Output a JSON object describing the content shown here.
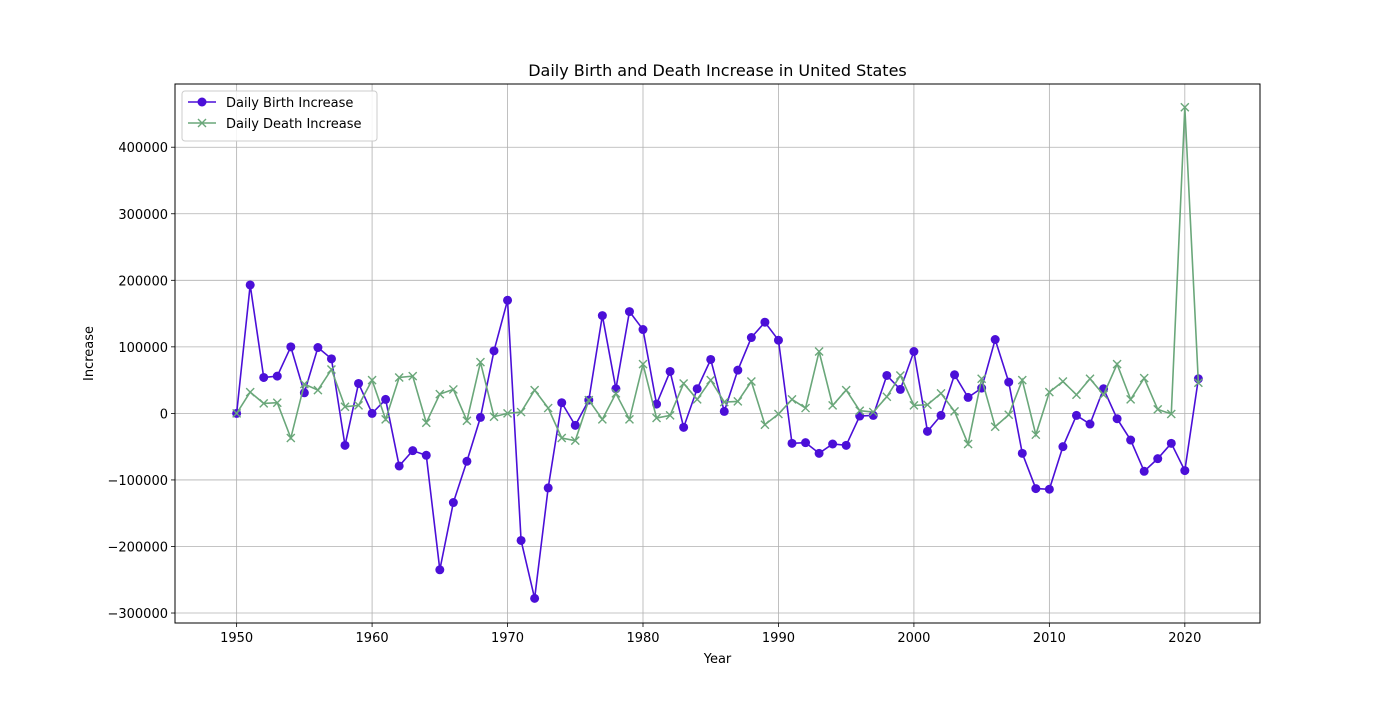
{
  "chart_data": {
    "type": "line",
    "title": "Daily Birth and Death Increase in United States",
    "xlabel": "Year",
    "ylabel": "Increase",
    "xlim": [
      1945.45,
      2025.55
    ],
    "ylim": [
      -315000,
      495000
    ],
    "x_ticks": [
      1950,
      1960,
      1970,
      1980,
      1990,
      2000,
      2010,
      2020
    ],
    "y_ticks": [
      -300000,
      -200000,
      -100000,
      0,
      100000,
      200000,
      300000,
      400000
    ],
    "grid": true,
    "legend_position": "upper-left",
    "x": [
      1950,
      1951,
      1952,
      1953,
      1954,
      1955,
      1956,
      1957,
      1958,
      1959,
      1960,
      1961,
      1962,
      1963,
      1964,
      1965,
      1966,
      1967,
      1968,
      1969,
      1970,
      1971,
      1972,
      1973,
      1974,
      1975,
      1976,
      1977,
      1978,
      1979,
      1980,
      1981,
      1982,
      1983,
      1984,
      1985,
      1986,
      1987,
      1988,
      1989,
      1990,
      1991,
      1992,
      1993,
      1994,
      1995,
      1996,
      1997,
      1998,
      1999,
      2000,
      2001,
      2002,
      2003,
      2004,
      2005,
      2006,
      2007,
      2008,
      2009,
      2010,
      2011,
      2012,
      2013,
      2014,
      2015,
      2016,
      2017,
      2018,
      2019,
      2020,
      2021
    ],
    "series": [
      {
        "name": "Daily Birth Increase",
        "color": "#4b0fd8",
        "marker": "circle",
        "values": [
          0,
          193000,
          54000,
          56000,
          100000,
          31000,
          99000,
          82000,
          -48000,
          45000,
          0,
          21000,
          -79000,
          -56000,
          -63000,
          -235000,
          -134000,
          -72000,
          -6000,
          94000,
          170000,
          -191000,
          -278000,
          -112000,
          16000,
          -18000,
          20000,
          147000,
          37000,
          153000,
          126000,
          14000,
          63000,
          -21000,
          37000,
          81000,
          3000,
          65000,
          114000,
          137000,
          110000,
          -45000,
          -44000,
          -60000,
          -46000,
          -48000,
          -4000,
          -3000,
          57000,
          36000,
          93000,
          -27000,
          -3000,
          58000,
          24000,
          38000,
          111000,
          47000,
          -60000,
          -113000,
          -114000,
          -50000,
          -3000,
          -16000,
          37000,
          -8000,
          -40000,
          -87000,
          -68000,
          -45000,
          -86000,
          52000
        ]
      },
      {
        "name": "Daily Death Increase",
        "color": "#6aa77a",
        "marker": "x",
        "values": [
          0,
          32000,
          15000,
          16000,
          -37000,
          44000,
          35000,
          66000,
          10000,
          12000,
          50000,
          -9000,
          54000,
          56000,
          -14000,
          29000,
          36000,
          -11000,
          77000,
          -5000,
          0,
          2000,
          35000,
          8000,
          -37000,
          -41000,
          20000,
          -9000,
          30000,
          -9000,
          74000,
          -7000,
          -3000,
          45000,
          21000,
          50000,
          17000,
          18000,
          48000,
          -17000,
          -1000,
          21000,
          8000,
          93000,
          12000,
          35000,
          4000,
          2000,
          25000,
          57000,
          12000,
          13000,
          30000,
          3000,
          -46000,
          52000,
          -20000,
          -2000,
          50000,
          -32000,
          32000,
          48000,
          28000,
          52000,
          28000,
          74000,
          21000,
          53000,
          6000,
          -1000,
          460000,
          46000
        ]
      }
    ]
  }
}
